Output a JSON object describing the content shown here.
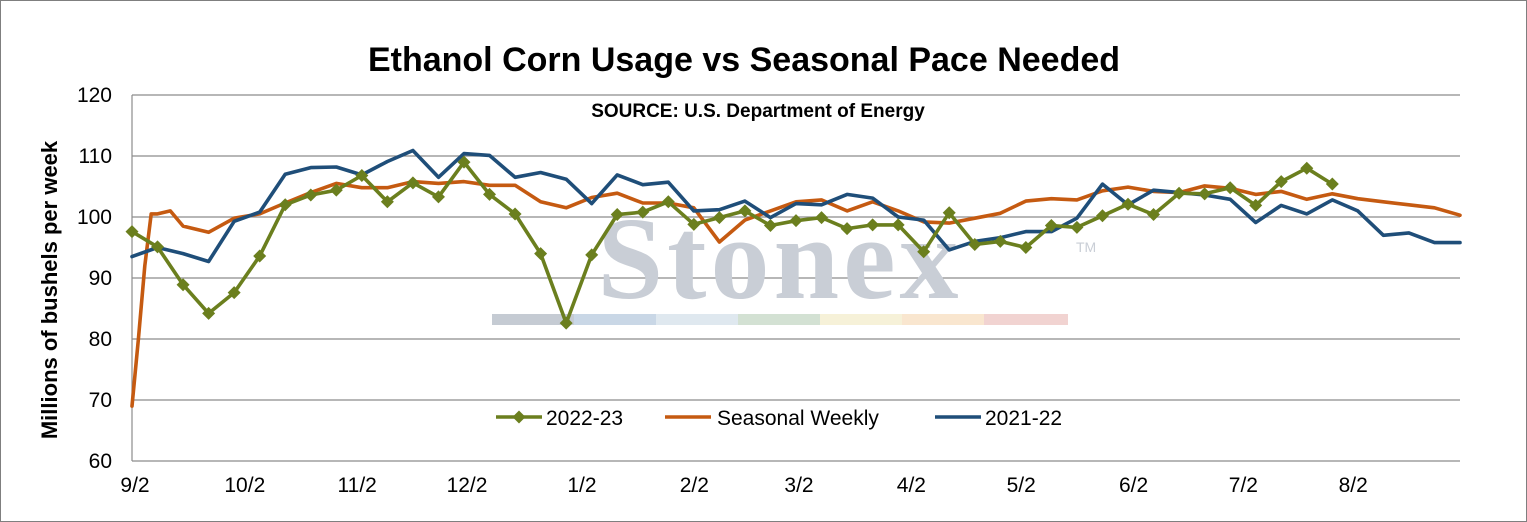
{
  "chart_data": {
    "type": "line",
    "title": "Ethanol Corn Usage vs Seasonal Pace Needed",
    "subtitle": "SOURCE: U.S. Department of Energy",
    "ylabel": "Millions of bushels per week",
    "xlabel": "",
    "ylim": [
      60,
      120
    ],
    "yticks": [
      60,
      70,
      80,
      90,
      100,
      110,
      120
    ],
    "xlim": [
      0,
      52
    ],
    "xtick_labels": [
      "9/2",
      "10/2",
      "11/2",
      "12/2",
      "1/2",
      "2/2",
      "3/2",
      "4/2",
      "5/2",
      "6/2",
      "7/2",
      "8/2"
    ],
    "xtick_positions": [
      0,
      4.3,
      8.7,
      13.0,
      17.5,
      21.9,
      26.0,
      30.4,
      34.7,
      39.1,
      43.4,
      47.7
    ],
    "grid": true,
    "legend_position": "bottom-center",
    "watermark": "Stonex",
    "watermark_mark": "TM",
    "series": [
      {
        "name": "2022-23",
        "color": "#6b7f1e",
        "marker": "diamond",
        "x": [
          0,
          1,
          2,
          3,
          4,
          5,
          6,
          7,
          8,
          9,
          10,
          11,
          12,
          13,
          14,
          15,
          16,
          17,
          18,
          19,
          20,
          21,
          22,
          23,
          24,
          25,
          26,
          27,
          28,
          29,
          30,
          31,
          32,
          33,
          34,
          35,
          36,
          37,
          38,
          39,
          40,
          41,
          42,
          43,
          44,
          45,
          46,
          47
        ],
        "values": [
          97.6,
          95.1,
          88.9,
          84.2,
          87.6,
          93.6,
          102.0,
          103.6,
          104.4,
          106.8,
          102.5,
          105.6,
          103.3,
          109.0,
          103.7,
          100.5,
          94.0,
          82.6,
          93.8,
          100.4,
          100.8,
          102.5,
          98.8,
          99.9,
          101.0,
          98.6,
          99.4,
          99.9,
          98.1,
          98.7,
          98.7,
          94.3,
          100.7,
          95.5,
          96.0,
          95.0,
          98.6,
          98.3,
          100.2,
          102.1,
          100.4,
          103.9,
          103.8,
          104.8,
          101.9,
          105.8,
          108.0,
          105.4
        ]
      },
      {
        "name": "Seasonal Weekly",
        "color": "#c55a11",
        "marker": "none",
        "x": [
          0,
          0.25,
          0.5,
          0.75,
          1,
          1.5,
          2,
          3,
          4,
          5,
          6,
          7,
          8,
          9,
          10,
          11,
          12,
          13,
          14,
          15,
          16,
          17,
          18,
          19,
          20,
          21,
          22,
          23,
          24,
          25,
          26,
          27,
          28,
          29,
          30,
          31,
          32,
          33,
          34,
          35,
          36,
          37,
          38,
          39,
          40,
          41,
          42,
          43,
          44,
          45,
          46,
          47,
          48,
          49,
          50,
          51,
          52
        ],
        "values": [
          69.0,
          80.0,
          92.0,
          100.5,
          100.5,
          101.0,
          98.5,
          97.5,
          99.8,
          100.5,
          102.3,
          104.0,
          105.5,
          104.8,
          104.8,
          105.8,
          105.5,
          105.8,
          105.2,
          105.2,
          102.5,
          101.5,
          103.2,
          103.9,
          102.3,
          102.3,
          101.5,
          95.9,
          99.5,
          101.0,
          102.5,
          102.8,
          101.0,
          102.5,
          101.0,
          99.2,
          99.0,
          99.8,
          100.6,
          102.6,
          103.0,
          102.8,
          104.3,
          104.9,
          104.2,
          104.0,
          105.1,
          104.7,
          103.7,
          104.2,
          102.9,
          103.8,
          103.0,
          102.5,
          102.0,
          101.5,
          100.3
        ]
      },
      {
        "name": "2021-22",
        "color": "#1f4e79",
        "marker": "none",
        "x": [
          0,
          1,
          2,
          3,
          4,
          5,
          6,
          7,
          8,
          9,
          10,
          11,
          12,
          13,
          14,
          15,
          16,
          17,
          18,
          19,
          20,
          21,
          22,
          23,
          24,
          25,
          26,
          27,
          28,
          29,
          30,
          31,
          32,
          33,
          34,
          35,
          36,
          37,
          38,
          39,
          40,
          41,
          42,
          43,
          44,
          45,
          46,
          47,
          48,
          49,
          50,
          51,
          52
        ],
        "values": [
          93.5,
          95.0,
          94.0,
          92.7,
          99.3,
          100.8,
          107.0,
          108.1,
          108.2,
          106.9,
          109.1,
          110.9,
          106.5,
          110.4,
          110.1,
          106.5,
          107.3,
          106.2,
          102.2,
          106.9,
          105.3,
          105.7,
          101.0,
          101.2,
          102.6,
          99.9,
          102.2,
          102.0,
          103.7,
          103.1,
          100.0,
          99.5,
          94.6,
          96.0,
          96.6,
          97.6,
          97.6,
          99.8,
          105.4,
          102.0,
          104.4,
          104.0,
          103.6,
          102.9,
          99.1,
          101.9,
          100.5,
          102.8,
          101.0,
          97.0,
          97.4,
          95.8,
          95.8
        ]
      }
    ]
  }
}
